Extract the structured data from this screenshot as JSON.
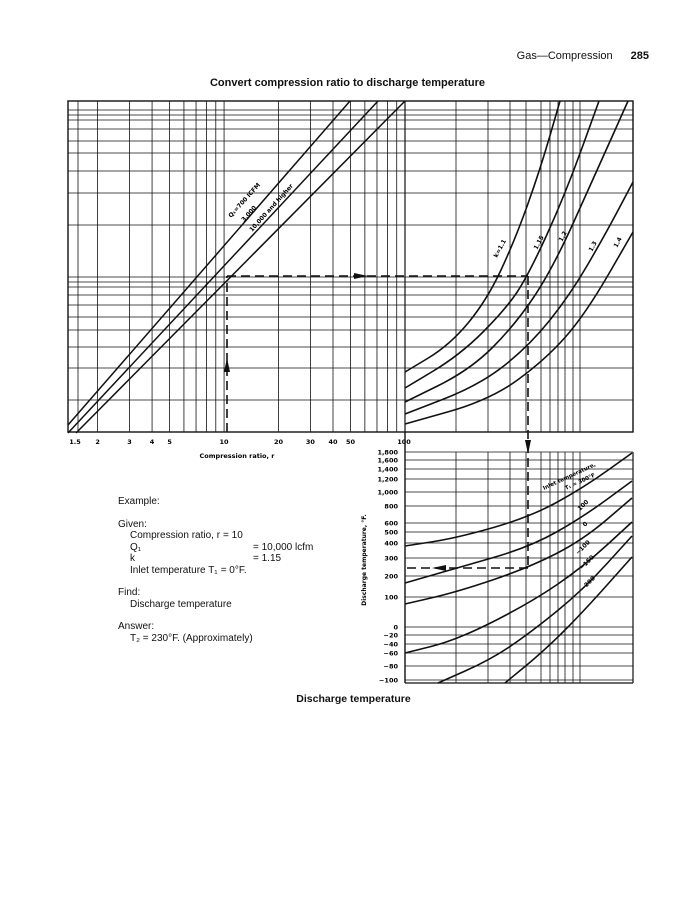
{
  "header": {
    "section": "Gas—Compression",
    "page_number": "285"
  },
  "figure_title": "Convert compression ratio to discharge temperature",
  "caption": "Discharge temperature",
  "example": {
    "heading": "Example:",
    "given_label": "Given:",
    "given": [
      {
        "key": "Compression ratio, r",
        "value": "= 10"
      },
      {
        "key": "Q₁",
        "value": "= 10,000 lcfm"
      },
      {
        "key": "k",
        "value": "= 1.15"
      },
      {
        "key": "Inlet temperature T₁",
        "value": "= 0°F."
      }
    ],
    "find_label": "Find:",
    "find": "Discharge temperature",
    "answer_label": "Answer:",
    "answer": "T₂ = 230°F. (Approximately)"
  },
  "chart_data": [
    {
      "type": "line",
      "title": "Convert compression ratio to discharge temperature",
      "xlabel": "Compression ratio, r",
      "xscale": "log",
      "xlim": [
        1.5,
        100
      ],
      "xticks": [
        {
          "v": 1.5,
          "label": "1.5"
        },
        {
          "v": 2,
          "label": "2"
        },
        {
          "v": 3,
          "label": "3"
        },
        {
          "v": 4,
          "label": "4"
        },
        {
          "v": 5,
          "label": "5"
        },
        {
          "v": 10,
          "label": "10"
        },
        {
          "v": 20,
          "label": "20"
        },
        {
          "v": 30,
          "label": "30"
        },
        {
          "v": 40,
          "label": "40"
        },
        {
          "v": 50,
          "label": "50"
        },
        {
          "v": 100,
          "label": "100"
        }
      ],
      "grid": true,
      "series": [
        {
          "name": "Q₁=700 ICFM",
          "label": "Q₁=700 ICFM"
        },
        {
          "name": "3,000",
          "label": "3,000"
        },
        {
          "name": "10,000 and higher",
          "label": "10,000 and higher"
        }
      ],
      "k_series": [
        {
          "name": "k=1.1",
          "label": "k=1.1"
        },
        {
          "name": "1.15",
          "label": "1.15"
        },
        {
          "name": "1.2",
          "label": "1.2"
        },
        {
          "name": "1.3",
          "label": "1.3"
        },
        {
          "name": "1.4",
          "label": "1.4"
        }
      ],
      "example_path": {
        "r": 10,
        "Q1": 10000,
        "k": 1.15,
        "T1": 0,
        "T2": 230
      }
    },
    {
      "type": "line",
      "ylabel": "Discharge temperature, °F.",
      "yticks": [
        "1,800",
        "1,600",
        "1,400",
        "1,200",
        "1,000",
        "800",
        "600",
        "500",
        "400",
        "300",
        "200",
        "100",
        "0",
        "−20",
        "−40",
        "−60",
        "−80",
        "−100"
      ],
      "ylim": [
        -100,
        1800
      ],
      "series_title": "Inlet temperature,",
      "series": [
        {
          "name": "T1=300",
          "label": "T₁ = 300°F"
        },
        {
          "name": "100",
          "label": "100"
        },
        {
          "name": "0",
          "label": "0"
        },
        {
          "name": "-100",
          "label": "−100"
        },
        {
          "name": "-150",
          "label": "−150"
        },
        {
          "name": "-200",
          "label": "−200"
        }
      ]
    }
  ]
}
